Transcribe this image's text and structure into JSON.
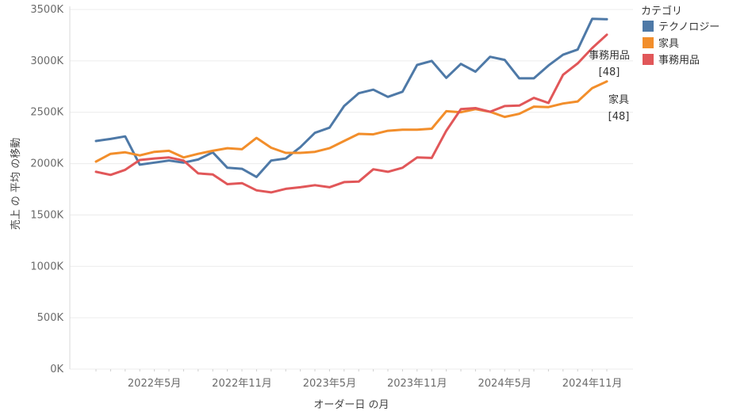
{
  "chart_data": {
    "type": "line",
    "xlabel": "オーダー日 の月",
    "ylabel": "売上 の 平均 の移動",
    "ylim": [
      0,
      3500
    ],
    "y_ticks": [
      "0K",
      "500K",
      "1000K",
      "1500K",
      "2000K",
      "2500K",
      "3000K",
      "3500K"
    ],
    "x_tick_labels": [
      "2022年5月",
      "2022年11月",
      "2023年5月",
      "2023年11月",
      "2024年5月",
      "2024年11月"
    ],
    "x_tick_months": [
      5,
      11,
      17,
      23,
      29,
      35
    ],
    "grid": "horizontal",
    "legend": {
      "title": "カテゴリ",
      "position": "right-top"
    },
    "months": [
      1,
      2,
      3,
      4,
      5,
      6,
      7,
      8,
      9,
      10,
      11,
      12,
      13,
      14,
      15,
      16,
      17,
      18,
      19,
      20,
      21,
      22,
      23,
      24,
      25,
      26,
      27,
      28,
      29,
      30,
      31,
      32,
      33,
      34,
      35,
      36
    ],
    "series": [
      {
        "name": "テクノロジー",
        "color": "#4e79a7",
        "values": [
          2220,
          2240,
          2265,
          1990,
          2010,
          2030,
          2010,
          2040,
          2110,
          1960,
          1950,
          1870,
          2030,
          2050,
          2160,
          2300,
          2350,
          2560,
          2685,
          2720,
          2650,
          2700,
          2960,
          3000,
          2835,
          2970,
          2895,
          3040,
          3010,
          2830,
          2830,
          2955,
          3060,
          3110,
          3410,
          3405
        ]
      },
      {
        "name": "家具",
        "color": "#f28e2b",
        "values": [
          2020,
          2095,
          2110,
          2080,
          2115,
          2125,
          2060,
          2095,
          2125,
          2150,
          2140,
          2250,
          2155,
          2105,
          2105,
          2115,
          2150,
          2220,
          2290,
          2285,
          2320,
          2330,
          2330,
          2340,
          2510,
          2500,
          2530,
          2505,
          2455,
          2485,
          2555,
          2550,
          2585,
          2605,
          2735,
          2800
        ]
      },
      {
        "name": "事務用品",
        "color": "#e15759",
        "values": [
          1920,
          1890,
          1940,
          2035,
          2050,
          2060,
          2030,
          1905,
          1895,
          1800,
          1810,
          1740,
          1720,
          1755,
          1770,
          1790,
          1770,
          1820,
          1825,
          1945,
          1920,
          1960,
          2060,
          2055,
          2320,
          2530,
          2540,
          2505,
          2560,
          2565,
          2640,
          2590,
          2865,
          2975,
          3125,
          3255
        ]
      }
    ],
    "end_labels": [
      {
        "series": "事務用品",
        "text": "事務用品",
        "count": "[48]"
      },
      {
        "series": "家具",
        "text": "家具",
        "count": "[48]"
      }
    ]
  }
}
